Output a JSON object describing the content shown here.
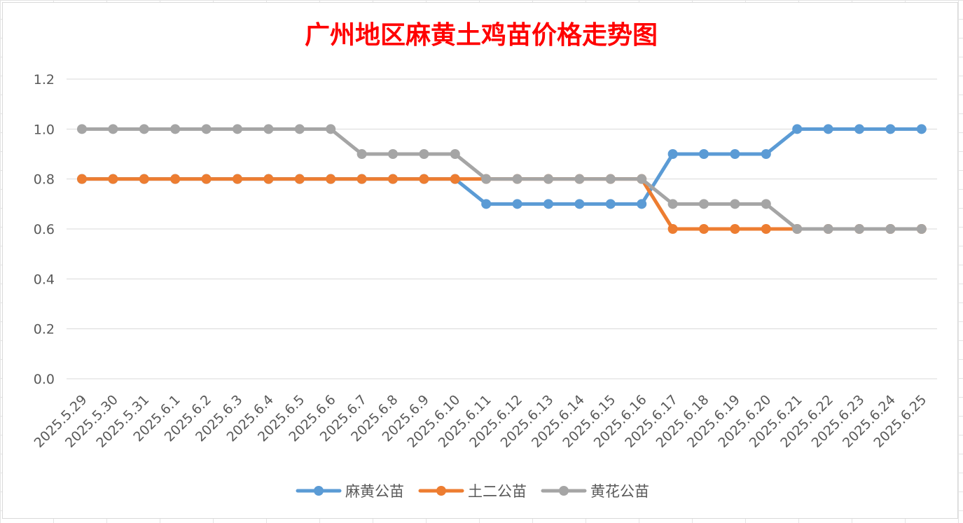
{
  "chart_data": {
    "type": "line",
    "title": "广州地区麻黄土鸡苗价格走势图",
    "title_color": "#ff0000",
    "categories": [
      "2025.5.29",
      "2025.5.30",
      "2025.5.31",
      "2025.6.1",
      "2025.6.2",
      "2025.6.3",
      "2025.6.4",
      "2025.6.5",
      "2025.6.6",
      "2025.6.7",
      "2025.6.8",
      "2025.6.9",
      "2025.6.10",
      "2025.6.11",
      "2025.6.12",
      "2025.6.13",
      "2025.6.14",
      "2025.6.15",
      "2025.6.16",
      "2025.6.17",
      "2025.6.18",
      "2025.6.19",
      "2025.6.20",
      "2025.6.21",
      "2025.6.22",
      "2025.6.23",
      "2025.6.24",
      "2025.6.25"
    ],
    "y_ticks": [
      "0.0",
      "0.2",
      "0.4",
      "0.6",
      "0.8",
      "1.0",
      "1.2"
    ],
    "ylim": [
      0,
      1.2
    ],
    "grid": "horizontal",
    "legend_position": "bottom",
    "series": [
      {
        "name": "麻黄公苗",
        "color": "#5b9bd5",
        "values": [
          0.8,
          0.8,
          0.8,
          0.8,
          0.8,
          0.8,
          0.8,
          0.8,
          0.8,
          0.8,
          0.8,
          0.8,
          0.8,
          0.7,
          0.7,
          0.7,
          0.7,
          0.7,
          0.7,
          0.9,
          0.9,
          0.9,
          0.9,
          1.0,
          1.0,
          1.0,
          1.0,
          1.0
        ]
      },
      {
        "name": "土二公苗",
        "color": "#ed7d31",
        "values": [
          0.8,
          0.8,
          0.8,
          0.8,
          0.8,
          0.8,
          0.8,
          0.8,
          0.8,
          0.8,
          0.8,
          0.8,
          0.8,
          0.8,
          0.8,
          0.8,
          0.8,
          0.8,
          0.8,
          0.6,
          0.6,
          0.6,
          0.6,
          0.6,
          0.6,
          0.6,
          0.6,
          0.6
        ]
      },
      {
        "name": "黄花公苗",
        "color": "#a5a5a5",
        "values": [
          1.0,
          1.0,
          1.0,
          1.0,
          1.0,
          1.0,
          1.0,
          1.0,
          1.0,
          0.9,
          0.9,
          0.9,
          0.9,
          0.8,
          0.8,
          0.8,
          0.8,
          0.8,
          0.8,
          0.7,
          0.7,
          0.7,
          0.7,
          0.6,
          0.6,
          0.6,
          0.6,
          0.6
        ]
      }
    ]
  }
}
